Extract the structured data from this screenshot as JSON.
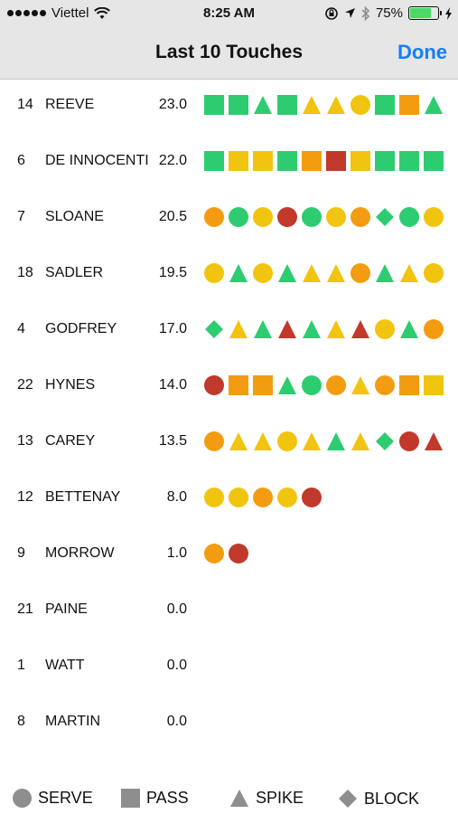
{
  "status": {
    "carrier": "Viettel",
    "time": "8:25 AM",
    "battery": "75%",
    "battery_level": 0.75
  },
  "nav": {
    "title": "Last 10 Touches",
    "done": "Done"
  },
  "colors": {
    "green": "#2ecc71",
    "yellow": "#f1c40f",
    "orange": "#f39c12",
    "red": "#c0392b",
    "gray": "#8e8e8e",
    "blue": "#147efb"
  },
  "players": [
    {
      "number": "14",
      "name": "REEVE",
      "score": "23.0",
      "touches": [
        [
          "square",
          "green"
        ],
        [
          "square",
          "green"
        ],
        [
          "triangle",
          "green"
        ],
        [
          "square",
          "green"
        ],
        [
          "triangle",
          "yellow"
        ],
        [
          "triangle",
          "yellow"
        ],
        [
          "circle",
          "yellow"
        ],
        [
          "square",
          "green"
        ],
        [
          "square",
          "orange"
        ],
        [
          "triangle",
          "green"
        ]
      ]
    },
    {
      "number": "6",
      "name": "DE INNOCENTI",
      "score": "22.0",
      "touches": [
        [
          "square",
          "green"
        ],
        [
          "square",
          "yellow"
        ],
        [
          "square",
          "yellow"
        ],
        [
          "square",
          "green"
        ],
        [
          "square",
          "orange"
        ],
        [
          "square",
          "red"
        ],
        [
          "square",
          "yellow"
        ],
        [
          "square",
          "green"
        ],
        [
          "square",
          "green"
        ],
        [
          "square",
          "green"
        ]
      ]
    },
    {
      "number": "7",
      "name": "SLOANE",
      "score": "20.5",
      "touches": [
        [
          "circle",
          "orange"
        ],
        [
          "circle",
          "green"
        ],
        [
          "circle",
          "yellow"
        ],
        [
          "circle",
          "red"
        ],
        [
          "circle",
          "green"
        ],
        [
          "circle",
          "yellow"
        ],
        [
          "circle",
          "orange"
        ],
        [
          "diamond",
          "green"
        ],
        [
          "circle",
          "green"
        ],
        [
          "circle",
          "yellow"
        ]
      ]
    },
    {
      "number": "18",
      "name": "SADLER",
      "score": "19.5",
      "touches": [
        [
          "circle",
          "yellow"
        ],
        [
          "triangle",
          "green"
        ],
        [
          "circle",
          "yellow"
        ],
        [
          "triangle",
          "green"
        ],
        [
          "triangle",
          "yellow"
        ],
        [
          "triangle",
          "yellow"
        ],
        [
          "circle",
          "orange"
        ],
        [
          "triangle",
          "green"
        ],
        [
          "triangle",
          "yellow"
        ],
        [
          "circle",
          "yellow"
        ]
      ]
    },
    {
      "number": "4",
      "name": "GODFREY",
      "score": "17.0",
      "touches": [
        [
          "diamond",
          "green"
        ],
        [
          "triangle",
          "yellow"
        ],
        [
          "triangle",
          "green"
        ],
        [
          "triangle",
          "red"
        ],
        [
          "triangle",
          "green"
        ],
        [
          "triangle",
          "yellow"
        ],
        [
          "triangle",
          "red"
        ],
        [
          "circle",
          "yellow"
        ],
        [
          "triangle",
          "green"
        ],
        [
          "circle",
          "orange"
        ]
      ]
    },
    {
      "number": "22",
      "name": "HYNES",
      "score": "14.0",
      "touches": [
        [
          "circle",
          "red"
        ],
        [
          "square",
          "orange"
        ],
        [
          "square",
          "orange"
        ],
        [
          "triangle",
          "green"
        ],
        [
          "circle",
          "green"
        ],
        [
          "circle",
          "orange"
        ],
        [
          "triangle",
          "yellow"
        ],
        [
          "circle",
          "orange"
        ],
        [
          "square",
          "orange"
        ],
        [
          "square",
          "yellow"
        ]
      ]
    },
    {
      "number": "13",
      "name": "CAREY",
      "score": "13.5",
      "touches": [
        [
          "circle",
          "orange"
        ],
        [
          "triangle",
          "yellow"
        ],
        [
          "triangle",
          "yellow"
        ],
        [
          "circle",
          "yellow"
        ],
        [
          "triangle",
          "yellow"
        ],
        [
          "triangle",
          "green"
        ],
        [
          "triangle",
          "yellow"
        ],
        [
          "diamond",
          "green"
        ],
        [
          "circle",
          "red"
        ],
        [
          "triangle",
          "red"
        ]
      ]
    },
    {
      "number": "12",
      "name": "BETTENAY",
      "score": "8.0",
      "touches": [
        [
          "circle",
          "yellow"
        ],
        [
          "circle",
          "yellow"
        ],
        [
          "circle",
          "orange"
        ],
        [
          "circle",
          "yellow"
        ],
        [
          "circle",
          "red"
        ]
      ]
    },
    {
      "number": "9",
      "name": "MORROW",
      "score": "1.0",
      "touches": [
        [
          "circle",
          "orange"
        ],
        [
          "circle",
          "red"
        ]
      ]
    },
    {
      "number": "21",
      "name": "PAINE",
      "score": "0.0",
      "touches": []
    },
    {
      "number": "1",
      "name": "WATT",
      "score": "0.0",
      "touches": []
    },
    {
      "number": "8",
      "name": "MARTIN",
      "score": "0.0",
      "touches": []
    }
  ],
  "legend": {
    "serve": "SERVE",
    "pass": "PASS",
    "spike": "SPIKE",
    "block": "BLOCK"
  }
}
